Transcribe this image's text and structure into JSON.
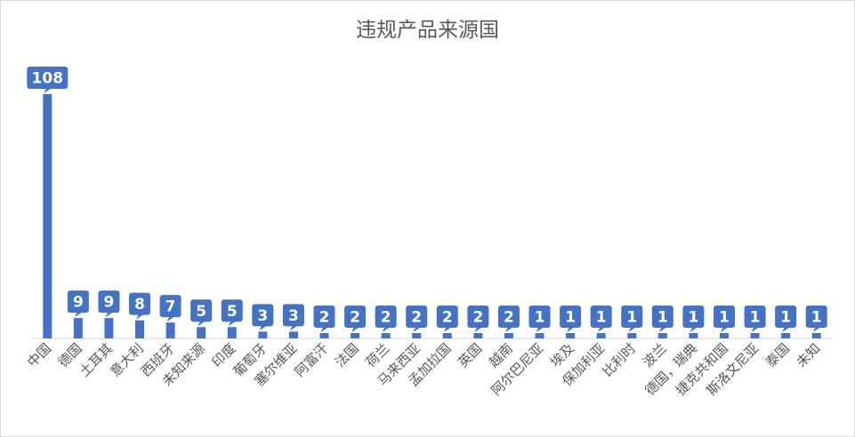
{
  "chart_data": {
    "type": "bar",
    "title": "违规产品来源国",
    "xlabel": "",
    "ylabel": "",
    "categories": [
      "中国",
      "德国",
      "土耳其",
      "意大利",
      "西班牙",
      "未知来源",
      "印度",
      "葡萄牙",
      "塞尔维亚",
      "阿富汗",
      "法国",
      "荷兰",
      "马来西亚",
      "孟加拉国",
      "英国",
      "越南",
      "阿尔巴尼亚",
      "埃及",
      "保加利亚",
      "比利时",
      "波兰",
      "德国，瑞典",
      "捷克共和国",
      "斯洛文尼亚",
      "泰国",
      "未知"
    ],
    "values": [
      108,
      9,
      9,
      8,
      7,
      5,
      5,
      3,
      3,
      2,
      2,
      2,
      2,
      2,
      2,
      2,
      1,
      1,
      1,
      1,
      1,
      1,
      1,
      1,
      1,
      1
    ],
    "ylim": [
      0,
      108
    ],
    "grid": false,
    "legend": "none",
    "data_labels": true,
    "bar_color": "#4472c4",
    "text_color": "#595959"
  }
}
